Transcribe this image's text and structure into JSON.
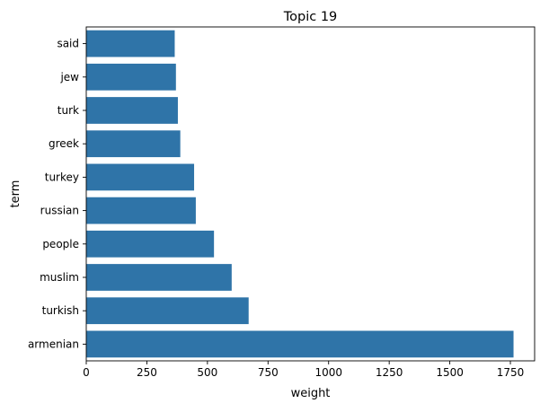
{
  "chart_data": {
    "type": "bar",
    "orientation": "horizontal",
    "title": "Topic 19",
    "xlabel": "weight",
    "ylabel": "term",
    "categories": [
      "said",
      "jew",
      "turk",
      "greek",
      "turkey",
      "russian",
      "people",
      "muslim",
      "turkish",
      "armenian"
    ],
    "values": [
      365,
      370,
      378,
      388,
      445,
      452,
      527,
      600,
      670,
      1763
    ],
    "xlim": [
      0,
      1850
    ],
    "xticks": [
      0,
      250,
      500,
      750,
      1000,
      1250,
      1500,
      1750
    ],
    "xtick_labels": [
      "0",
      "250",
      "500",
      "750",
      "1000",
      "1250",
      "1500",
      "1750"
    ],
    "bar_color": "#2f74a8",
    "grid": false,
    "legend": "none"
  }
}
